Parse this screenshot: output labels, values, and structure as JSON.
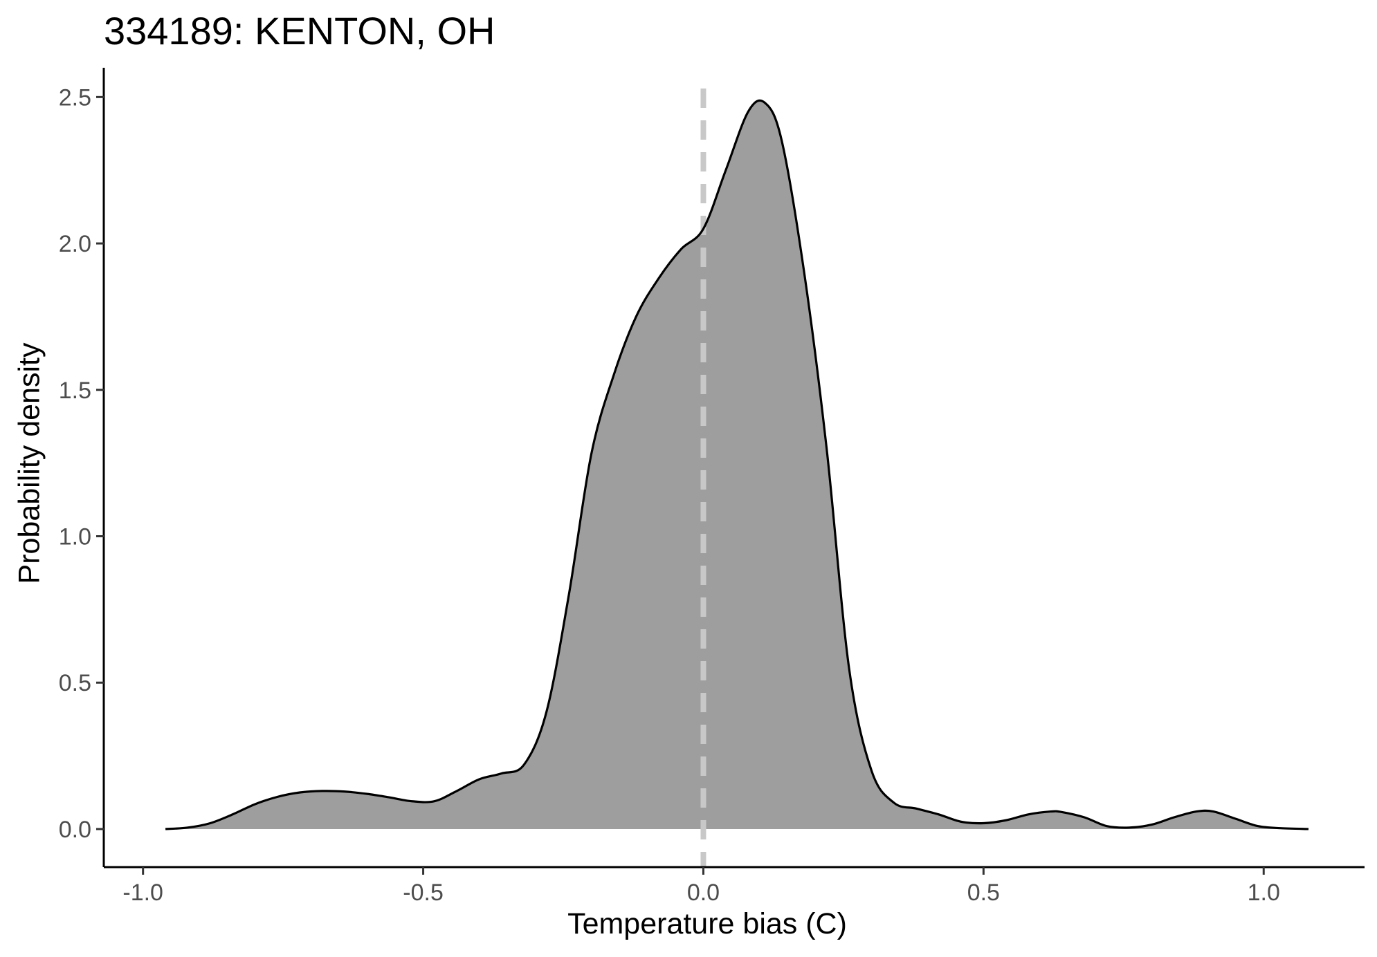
{
  "chart_data": {
    "type": "area",
    "title": "334189: KENTON, OH",
    "xlabel": "Temperature bias (C)",
    "ylabel": "Probability density",
    "xlim": [
      -1.07,
      1.18
    ],
    "ylim": [
      -0.13,
      2.6
    ],
    "x_ticks": [
      -1.0,
      -0.5,
      0.0,
      0.5,
      1.0
    ],
    "x_tick_labels": [
      "-1.0",
      "-0.5",
      "0.0",
      "0.5",
      "1.0"
    ],
    "y_ticks": [
      0.0,
      0.5,
      1.0,
      1.5,
      2.0,
      2.5
    ],
    "y_tick_labels": [
      "0.0",
      "0.5",
      "1.0",
      "1.5",
      "2.0",
      "2.5"
    ],
    "grid": false,
    "legend": "none",
    "reference_line": {
      "x": 0.0,
      "style": "dashed",
      "color": "#c8c8c8"
    },
    "fill_color": "#9e9e9e",
    "line_color": "#000000",
    "series": [
      {
        "x": [
          -0.96,
          -0.92,
          -0.88,
          -0.84,
          -0.8,
          -0.76,
          -0.72,
          -0.68,
          -0.64,
          -0.6,
          -0.56,
          -0.52,
          -0.48,
          -0.44,
          -0.4,
          -0.36,
          -0.32,
          -0.28,
          -0.24,
          -0.2,
          -0.16,
          -0.12,
          -0.08,
          -0.04,
          0.0,
          0.04,
          0.08,
          0.11,
          0.14,
          0.18,
          0.22,
          0.26,
          0.3,
          0.34,
          0.38,
          0.42,
          0.46,
          0.5,
          0.54,
          0.58,
          0.62,
          0.64,
          0.68,
          0.72,
          0.76,
          0.8,
          0.84,
          0.88,
          0.91,
          0.95,
          0.99,
          1.03,
          1.08
        ],
        "y": [
          0.0,
          0.005,
          0.02,
          0.05,
          0.085,
          0.11,
          0.125,
          0.13,
          0.128,
          0.12,
          0.108,
          0.095,
          0.095,
          0.13,
          0.17,
          0.19,
          0.22,
          0.4,
          0.8,
          1.28,
          1.55,
          1.75,
          1.88,
          1.98,
          2.05,
          2.25,
          2.45,
          2.48,
          2.35,
          1.9,
          1.3,
          0.55,
          0.2,
          0.09,
          0.07,
          0.05,
          0.025,
          0.02,
          0.03,
          0.05,
          0.06,
          0.058,
          0.04,
          0.01,
          0.005,
          0.015,
          0.04,
          0.06,
          0.06,
          0.035,
          0.01,
          0.003,
          0.0
        ]
      }
    ]
  }
}
